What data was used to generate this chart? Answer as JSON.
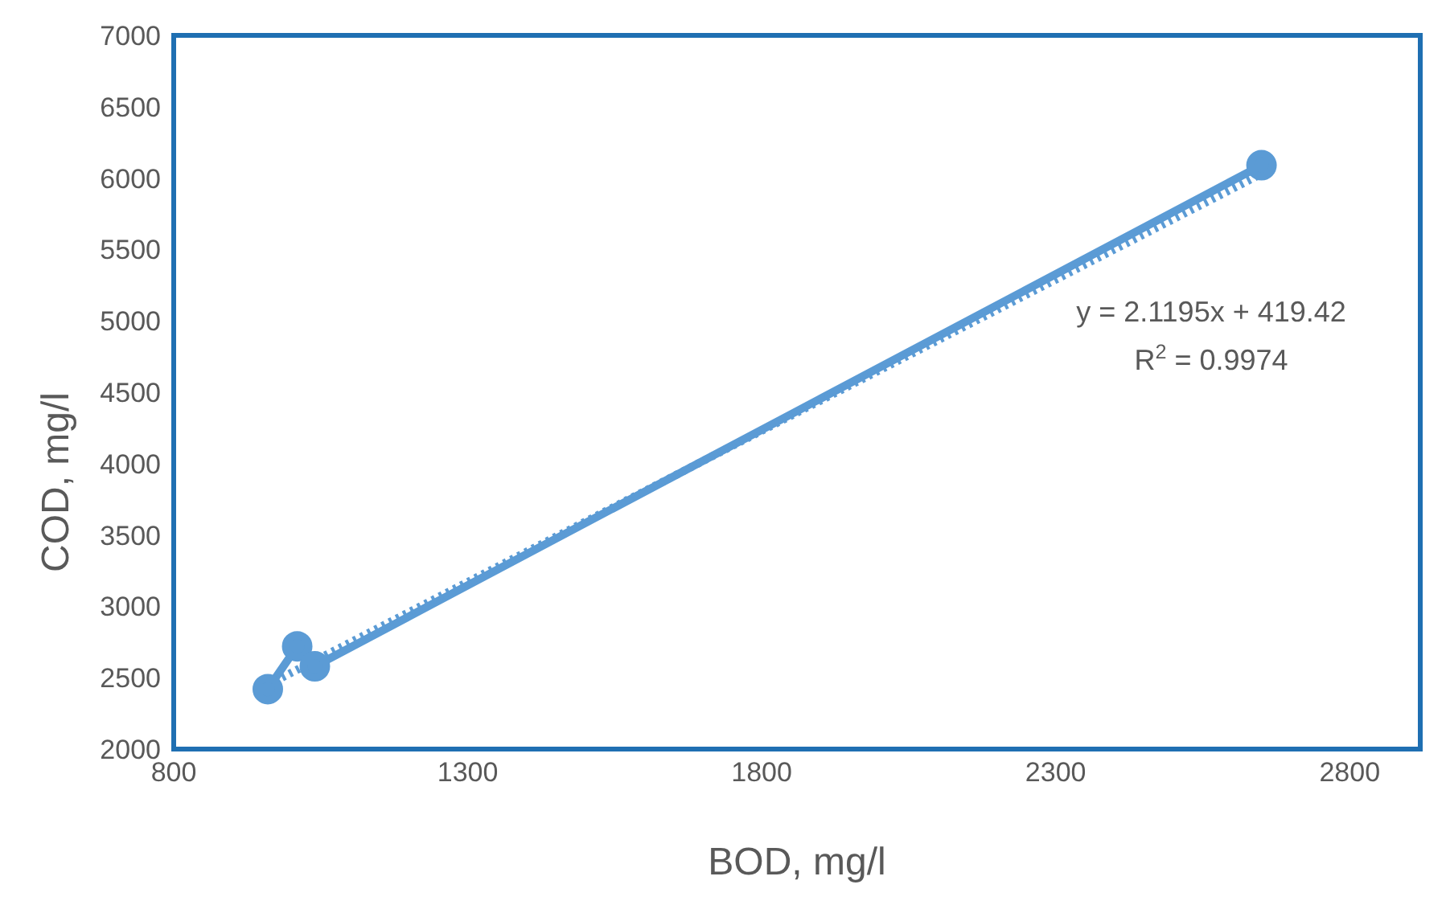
{
  "chart_data": {
    "type": "line",
    "xlabel": "BOD, mg/l",
    "ylabel": "COD, mg/l",
    "xlim": [
      800,
      2920
    ],
    "xticks": [
      800,
      1300,
      1800,
      2300,
      2800
    ],
    "ylim": [
      2000,
      7000
    ],
    "yticks": [
      2000,
      2500,
      3000,
      3500,
      4000,
      4500,
      5000,
      5500,
      6000,
      6500,
      7000
    ],
    "series": [
      {
        "color": "#5b9bd5",
        "x": [
          960,
          1010,
          1040,
          2650
        ],
        "values": [
          2420,
          2720,
          2580,
          6090
        ],
        "marker": "circle",
        "line_style": "solid"
      },
      {
        "color": "#5b9bd5",
        "x": [
          960,
          2650
        ],
        "values": [
          2450,
          6030
        ],
        "marker": "none",
        "line_style": "dotted"
      }
    ],
    "annotations": [
      "y = 2.1195x + 419.42",
      "R$^{2}$ = 0.9974"
    ]
  }
}
